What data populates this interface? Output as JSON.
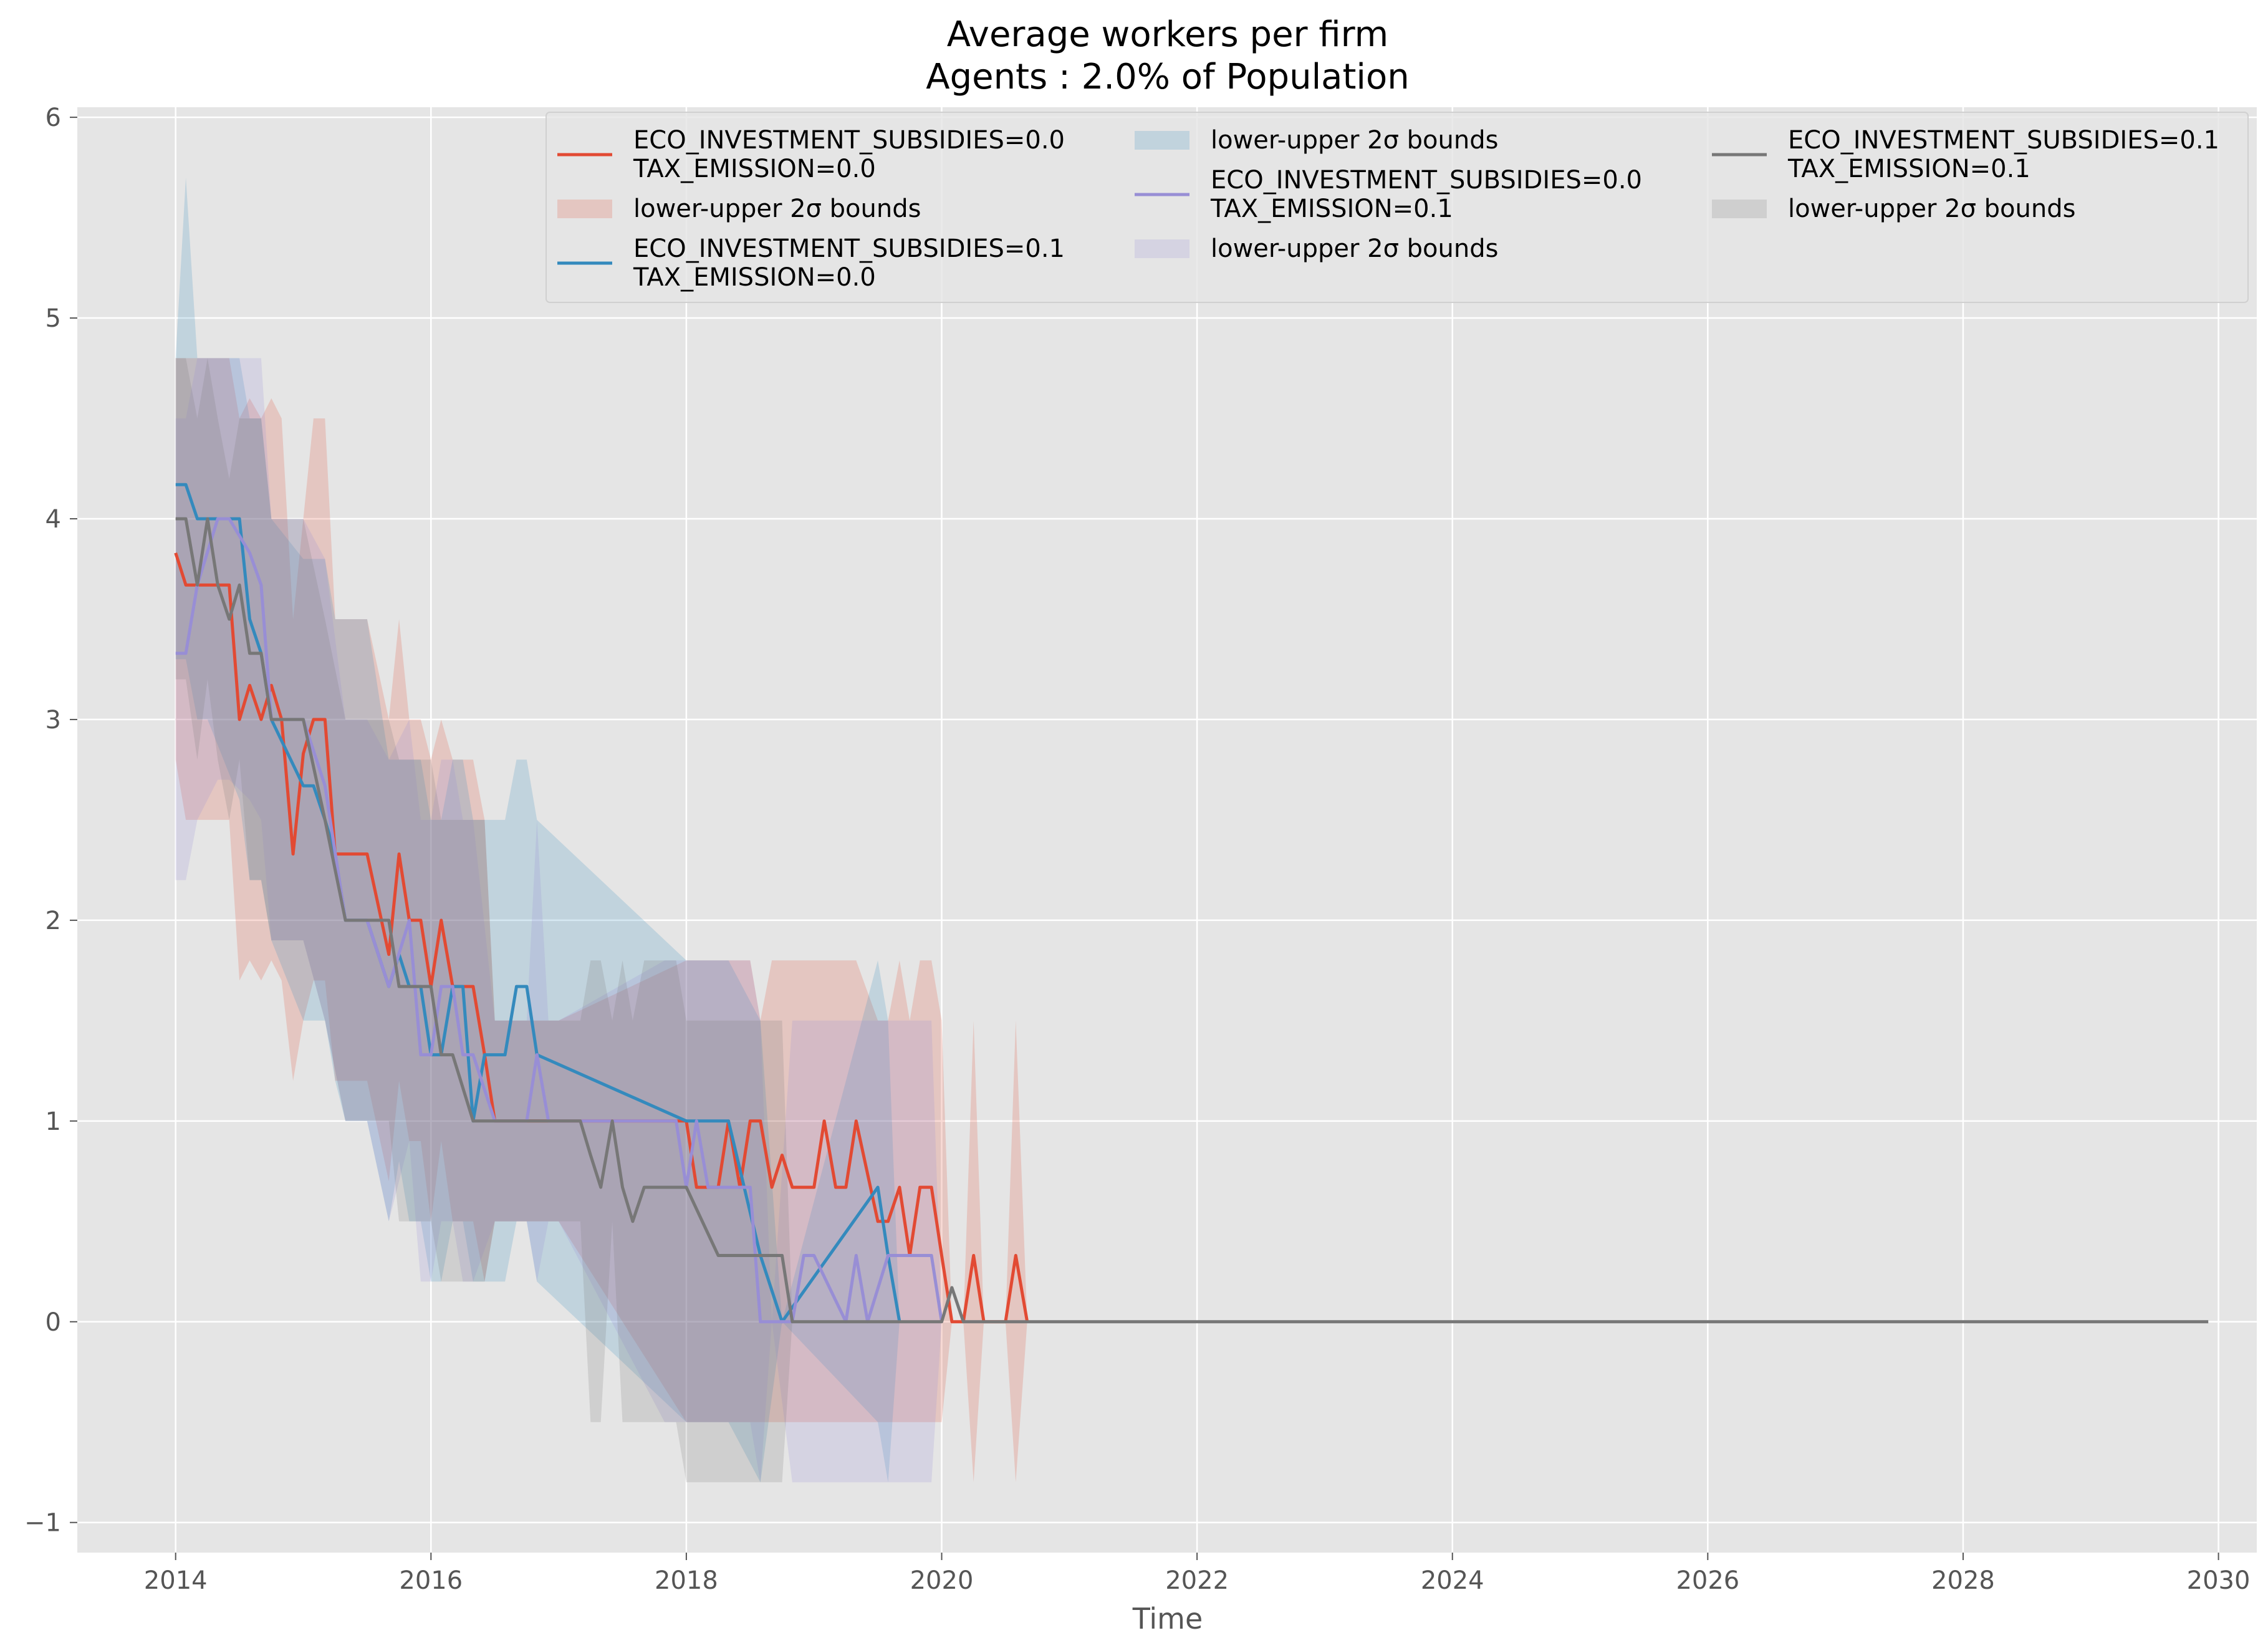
{
  "chart_data": {
    "type": "line",
    "title": "Average workers per firm",
    "subtitle": "Agents : 2.0% of Population",
    "xlabel": "Time",
    "ylabel": "",
    "xlim": [
      2013.23,
      2030.3
    ],
    "ylim": [
      -1.15,
      6.05
    ],
    "x_ticks": [
      "2014",
      "2016",
      "2018",
      "2020",
      "2022",
      "2024",
      "2026",
      "2028",
      "2030"
    ],
    "y_ticks": [
      "−1",
      "0",
      "1",
      "2",
      "3",
      "4",
      "5",
      "6"
    ],
    "grid": true,
    "legend_position": "top-center",
    "colors": {
      "axes_bg": "#e5e5e5",
      "grid": "#ffffff",
      "series0": "#e24a33",
      "series1": "#348abd",
      "series2": "#988ed5",
      "series3": "#777777"
    },
    "legend": [
      {
        "kind": "line",
        "series": 0,
        "lines": [
          "ECO_INVESTMENT_SUBSIDIES=0.0",
          "TAX_EMISSION=0.0"
        ]
      },
      {
        "kind": "band",
        "series": 0,
        "lines": [
          "lower-upper 2σ bounds"
        ]
      },
      {
        "kind": "line",
        "series": 1,
        "lines": [
          "ECO_INVESTMENT_SUBSIDIES=0.1",
          "TAX_EMISSION=0.0"
        ]
      },
      {
        "kind": "band",
        "series": 1,
        "lines": [
          "lower-upper 2σ bounds"
        ]
      },
      {
        "kind": "line",
        "series": 2,
        "lines": [
          "ECO_INVESTMENT_SUBSIDIES=0.0",
          "TAX_EMISSION=0.1"
        ]
      },
      {
        "kind": "band",
        "series": 2,
        "lines": [
          "lower-upper 2σ bounds"
        ]
      },
      {
        "kind": "line",
        "series": 3,
        "lines": [
          "ECO_INVESTMENT_SUBSIDIES=0.1",
          "TAX_EMISSION=0.1"
        ]
      },
      {
        "kind": "band",
        "series": 3,
        "lines": [
          "lower-upper 2σ bounds"
        ]
      }
    ],
    "series": [
      {
        "name": "ECO_INVESTMENT_SUBSIDIES=0.0 TAX_EMISSION=0.0",
        "x": [
          2014.0,
          2014.08,
          2014.17,
          2014.42,
          2014.5,
          2014.58,
          2014.67,
          2014.75,
          2014.83,
          2014.92,
          2015.0,
          2015.08,
          2015.17,
          2015.25,
          2015.33,
          2015.5,
          2015.67,
          2015.75,
          2015.83,
          2015.92,
          2016.0,
          2016.08,
          2016.17,
          2016.25,
          2016.33,
          2016.42,
          2016.5,
          2016.58,
          2017.0,
          2018.0,
          2018.08,
          2018.25,
          2018.33,
          2018.42,
          2018.5,
          2018.58,
          2018.67,
          2018.75,
          2018.83,
          2019.0,
          2019.08,
          2019.17,
          2019.25,
          2019.33,
          2019.5,
          2019.58,
          2019.67,
          2019.75,
          2019.83,
          2019.92,
          2020.0,
          2020.08,
          2020.17,
          2020.25,
          2020.33,
          2020.5,
          2020.58,
          2020.67
        ],
        "y": [
          3.83,
          3.67,
          3.67,
          3.67,
          3.0,
          3.17,
          3.0,
          3.17,
          3.0,
          2.33,
          2.83,
          3.0,
          3.0,
          2.33,
          2.33,
          2.33,
          1.83,
          2.33,
          2.0,
          2.0,
          1.67,
          2.0,
          1.67,
          1.67,
          1.67,
          1.33,
          1.0,
          1.0,
          1.0,
          1.0,
          0.67,
          0.67,
          1.0,
          0.67,
          1.0,
          1.0,
          0.67,
          0.83,
          0.67,
          0.67,
          1.0,
          0.67,
          0.67,
          1.0,
          0.5,
          0.5,
          0.67,
          0.33,
          0.67,
          0.67,
          0.33,
          0.0,
          0.0,
          0.33,
          0.0,
          0.0,
          0.33,
          0.0
        ],
        "lower": [
          2.8,
          2.5,
          2.5,
          2.5,
          1.7,
          1.8,
          1.7,
          1.8,
          1.7,
          1.2,
          1.5,
          1.7,
          1.7,
          1.2,
          1.2,
          1.2,
          0.7,
          1.2,
          0.9,
          0.9,
          0.5,
          0.9,
          0.5,
          0.5,
          0.5,
          0.2,
          0.5,
          0.5,
          0.5,
          -0.5,
          -0.5,
          -0.5,
          -0.5,
          -0.5,
          -0.5,
          -0.5,
          -0.5,
          -0.5,
          -0.5,
          -0.5,
          -0.5,
          -0.5,
          -0.5,
          -0.5,
          -0.5,
          -0.5,
          -0.5,
          -0.5,
          -0.5,
          -0.5,
          -0.5,
          0.0,
          0.0,
          -0.8,
          0.0,
          0.0,
          -0.8,
          0.0
        ],
        "upper": [
          4.8,
          4.8,
          4.8,
          4.8,
          4.5,
          4.6,
          4.5,
          4.6,
          4.5,
          3.5,
          4.0,
          4.5,
          4.5,
          3.5,
          3.5,
          3.5,
          3.0,
          3.5,
          3.0,
          3.0,
          2.8,
          3.0,
          2.8,
          2.8,
          2.8,
          2.5,
          1.5,
          1.5,
          1.5,
          1.8,
          1.8,
          1.8,
          1.8,
          1.8,
          1.8,
          1.5,
          1.8,
          1.8,
          1.8,
          1.8,
          1.8,
          1.8,
          1.8,
          1.8,
          1.5,
          1.5,
          1.8,
          1.5,
          1.8,
          1.8,
          1.5,
          0.0,
          0.0,
          1.5,
          0.0,
          0.0,
          1.5,
          0.0
        ]
      },
      {
        "name": "ECO_INVESTMENT_SUBSIDIES=0.1 TAX_EMISSION=0.0",
        "x": [
          2014.0,
          2014.08,
          2014.17,
          2014.25,
          2014.5,
          2014.58,
          2014.67,
          2014.75,
          2015.0,
          2015.08,
          2015.17,
          2015.25,
          2015.33,
          2015.5,
          2015.67,
          2015.75,
          2015.83,
          2015.92,
          2016.0,
          2016.08,
          2016.17,
          2016.25,
          2016.33,
          2016.42,
          2016.58,
          2016.67,
          2016.75,
          2016.83,
          2018.0,
          2018.33,
          2018.58,
          2018.75,
          2019.5,
          2019.58,
          2019.67
        ],
        "y": [
          4.17,
          4.17,
          4.0,
          4.0,
          4.0,
          3.5,
          3.33,
          3.0,
          2.67,
          2.67,
          2.5,
          2.33,
          2.0,
          2.0,
          1.67,
          1.83,
          1.67,
          1.67,
          1.33,
          1.33,
          1.67,
          1.67,
          1.0,
          1.33,
          1.33,
          1.67,
          1.67,
          1.33,
          1.0,
          1.0,
          0.33,
          0.0,
          0.67,
          0.33,
          0.0
        ],
        "lower": [
          3.3,
          3.3,
          3.0,
          3.0,
          2.6,
          2.2,
          2.2,
          1.9,
          1.5,
          1.5,
          1.5,
          1.2,
          1.0,
          1.0,
          0.5,
          0.8,
          0.5,
          0.5,
          0.2,
          0.2,
          0.5,
          0.5,
          0.2,
          0.2,
          0.2,
          0.5,
          0.5,
          0.2,
          -0.5,
          -0.5,
          -0.8,
          0.0,
          -0.5,
          -0.8,
          0.0
        ],
        "upper": [
          4.8,
          5.7,
          4.8,
          4.8,
          4.8,
          4.5,
          4.5,
          4.0,
          3.8,
          3.8,
          3.8,
          3.5,
          3.5,
          3.5,
          2.8,
          2.8,
          2.8,
          2.8,
          2.5,
          2.5,
          2.8,
          2.8,
          2.5,
          2.5,
          2.5,
          2.8,
          2.8,
          2.5,
          1.8,
          1.8,
          1.5,
          0.0,
          1.8,
          1.5,
          0.0
        ]
      },
      {
        "name": "ECO_INVESTMENT_SUBSIDIES=0.0 TAX_EMISSION=0.1",
        "x": [
          2014.0,
          2014.08,
          2014.17,
          2014.33,
          2014.42,
          2014.58,
          2014.67,
          2014.75,
          2015.0,
          2015.17,
          2015.33,
          2015.5,
          2015.67,
          2015.83,
          2015.92,
          2016.0,
          2016.08,
          2016.17,
          2016.25,
          2016.33,
          2016.5,
          2016.58,
          2016.75,
          2016.83,
          2016.92,
          2017.0,
          2017.83,
          2017.92,
          2018.0,
          2018.08,
          2018.17,
          2018.25,
          2018.5,
          2018.58,
          2018.67,
          2018.83,
          2018.92,
          2019.0,
          2019.25,
          2019.33,
          2019.42,
          2019.58,
          2019.67,
          2019.83,
          2019.92,
          2020.0
        ],
        "y": [
          3.33,
          3.33,
          3.67,
          4.0,
          4.0,
          3.83,
          3.67,
          3.0,
          3.0,
          2.67,
          2.0,
          2.0,
          1.67,
          2.0,
          1.33,
          1.33,
          1.67,
          1.67,
          1.33,
          1.33,
          1.0,
          1.0,
          1.0,
          1.33,
          1.0,
          1.0,
          1.0,
          1.0,
          0.67,
          1.0,
          0.67,
          0.67,
          0.67,
          0.0,
          0.0,
          0.0,
          0.33,
          0.33,
          0.0,
          0.33,
          0.0,
          0.33,
          0.33,
          0.33,
          0.33,
          0.0
        ],
        "lower": [
          2.2,
          2.2,
          2.5,
          2.7,
          2.7,
          2.6,
          2.5,
          1.9,
          1.9,
          1.5,
          1.0,
          1.0,
          0.5,
          0.9,
          0.2,
          0.2,
          0.5,
          0.5,
          0.2,
          0.2,
          0.5,
          0.5,
          0.5,
          0.2,
          0.5,
          0.5,
          -0.5,
          -0.5,
          -0.5,
          -0.5,
          -0.5,
          -0.5,
          -0.5,
          -0.8,
          0.0,
          -0.8,
          -0.8,
          -0.8,
          -0.8,
          -0.8,
          -0.8,
          -0.8,
          -0.8,
          -0.8,
          -0.8,
          0.0
        ],
        "upper": [
          4.5,
          4.5,
          4.8,
          4.8,
          4.8,
          4.8,
          4.8,
          4.0,
          4.0,
          3.8,
          3.0,
          3.0,
          2.8,
          3.0,
          2.5,
          2.5,
          2.8,
          2.8,
          2.5,
          2.5,
          1.5,
          1.5,
          1.5,
          2.5,
          1.5,
          1.5,
          1.8,
          1.8,
          1.8,
          1.8,
          1.8,
          1.8,
          1.8,
          1.5,
          0.0,
          1.5,
          1.5,
          1.5,
          1.5,
          1.5,
          1.5,
          1.5,
          1.5,
          1.5,
          1.5,
          0.0
        ]
      },
      {
        "name": "ECO_INVESTMENT_SUBSIDIES=0.1 TAX_EMISSION=0.1",
        "x": [
          2014.0,
          2014.08,
          2014.17,
          2014.25,
          2014.33,
          2014.42,
          2014.5,
          2014.58,
          2014.67,
          2014.75,
          2015.0,
          2015.17,
          2015.33,
          2015.5,
          2015.67,
          2015.75,
          2016.0,
          2016.08,
          2016.17,
          2016.33,
          2016.42,
          2016.5,
          2017.0,
          2017.17,
          2017.25,
          2017.33,
          2017.42,
          2017.5,
          2017.58,
          2017.67,
          2017.92,
          2018.0,
          2018.25,
          2018.33,
          2018.42,
          2018.75,
          2018.83,
          2019.08,
          2019.25,
          2019.83,
          2020.0,
          2020.08,
          2020.17,
          2020.25,
          2029.92
        ],
        "y": [
          4.0,
          4.0,
          3.67,
          4.0,
          3.67,
          3.5,
          3.67,
          3.33,
          3.33,
          3.0,
          3.0,
          2.5,
          2.0,
          2.0,
          2.0,
          1.67,
          1.67,
          1.33,
          1.33,
          1.0,
          1.0,
          1.0,
          1.0,
          1.0,
          0.83,
          0.67,
          1.0,
          0.67,
          0.5,
          0.67,
          0.67,
          0.67,
          0.33,
          0.33,
          0.33,
          0.33,
          0.0,
          0.0,
          0.0,
          0.0,
          0.0,
          0.17,
          0.0,
          0.0,
          0.0
        ],
        "lower": [
          3.2,
          3.2,
          2.8,
          3.2,
          2.8,
          2.5,
          2.8,
          2.2,
          2.2,
          1.9,
          1.9,
          1.5,
          1.0,
          1.0,
          1.0,
          0.5,
          0.5,
          0.2,
          0.2,
          0.2,
          0.2,
          0.5,
          0.5,
          0.5,
          -0.5,
          -0.5,
          0.5,
          -0.5,
          -0.5,
          -0.5,
          -0.5,
          -0.8,
          -0.8,
          -0.8,
          -0.8,
          -0.8,
          0.0,
          0.0,
          0.0,
          0.0,
          0.0,
          0.0,
          0.0,
          0.0,
          0.0
        ],
        "upper": [
          4.8,
          4.8,
          4.5,
          4.8,
          4.5,
          4.2,
          4.5,
          4.5,
          4.5,
          4.0,
          4.0,
          3.5,
          3.0,
          3.0,
          3.0,
          2.8,
          2.8,
          2.5,
          2.5,
          2.5,
          2.5,
          1.5,
          1.5,
          1.5,
          1.8,
          1.8,
          1.5,
          1.8,
          1.5,
          1.8,
          1.8,
          1.5,
          1.5,
          1.5,
          1.5,
          1.5,
          0.0,
          0.0,
          0.0,
          0.0,
          0.0,
          0.0,
          0.0,
          0.0,
          0.0
        ]
      }
    ]
  }
}
